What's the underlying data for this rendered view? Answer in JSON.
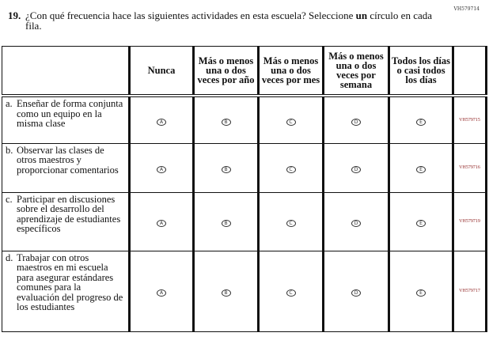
{
  "page_code": "VH579714",
  "question": {
    "number": "19.",
    "text_before": "¿Con qué frecuencia hace las siguientes actividades en esta escuela? Seleccione ",
    "text_bold": "un",
    "text_after": " círculo en cada fila."
  },
  "columns": [
    "Nunca",
    "Más o menos una o dos veces por año",
    "Más o menos una o dos veces por mes",
    "Más o menos una o dos veces por semana",
    "Todos los días o casi todos los días"
  ],
  "bubble_letters": [
    "A",
    "B",
    "C",
    "D",
    "E"
  ],
  "rows": [
    {
      "letter": "a.",
      "text": "Enseñar de forma conjunta como un equipo en la misma clase",
      "code": "VH579715"
    },
    {
      "letter": "b.",
      "text": "Observar las clases de otros maestros y proporcionar comentarios",
      "code": "VH579716"
    },
    {
      "letter": "c.",
      "text": "Participar en discusiones sobre el desarrollo del aprendizaje de estudiantes específicos",
      "code": "VH579719"
    },
    {
      "letter": "d.",
      "text": "Trabajar con otros maestros en mi escuela para asegurar estándares comunes para la evaluación del progreso de los estudiantes",
      "code": "VH579717"
    }
  ],
  "colors": {
    "code_text": "#8b1a1a",
    "border": "#111111"
  }
}
